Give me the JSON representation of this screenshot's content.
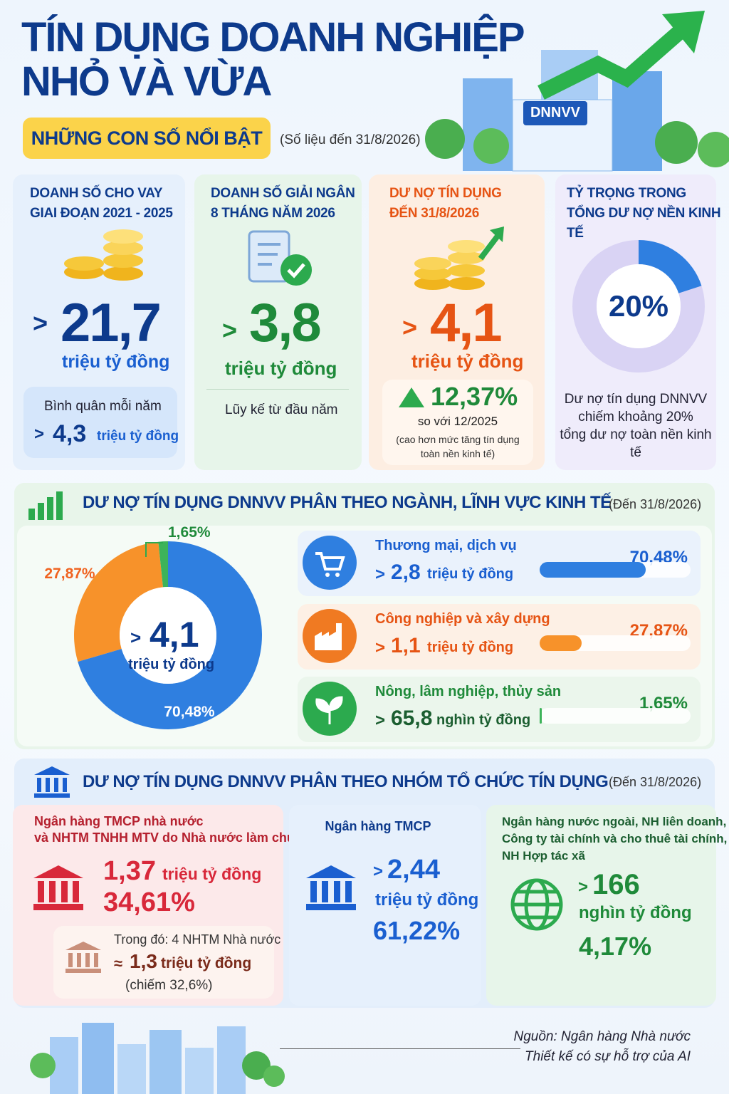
{
  "header": {
    "title_lines": [
      "TÍN DỤNG DOANH NGHIỆP",
      "NHỎ VÀ VỪA"
    ],
    "badge": "NHỮNG CON SỐ NỔI BẬT",
    "note": "(Số liệu đến 31/8/2026)",
    "building_sign": "DNNVV"
  },
  "cards": [
    {
      "title_lines": [
        "DOANH SỐ CHO VAY",
        "GIAI ĐOẠN 2021 - 2025"
      ],
      "prefix": ">",
      "value": "21,7",
      "unit": "triệu tỷ đồng",
      "note": "Bình quân mỗi năm",
      "note_value": "4,3",
      "note_unit": "triệu tỷ đồng"
    },
    {
      "title_lines": [
        "DOANH SỐ GIẢI NGÂN",
        "8 THÁNG NĂM 2026"
      ],
      "prefix": ">",
      "value": "3,8",
      "unit": "triệu tỷ đồng",
      "note": "Lũy kế từ đầu năm"
    },
    {
      "title_lines": [
        "DƯ NỢ TÍN DỤNG",
        "ĐẾN 31/8/2026"
      ],
      "prefix": ">",
      "value": "4,1",
      "unit": "triệu tỷ đồng",
      "growth": "12,37%",
      "growth_note": "so với 12/2025",
      "growth_detail_lines": [
        "(cao hơn mức tăng tín dụng",
        "toàn nền kinh tế)"
      ]
    },
    {
      "title_lines": [
        "TỶ TRỌNG TRONG",
        "TỔNG DƯ NỢ NỀN KINH TẾ"
      ],
      "share": {
        "value": 20,
        "label": "20%",
        "lim": [
          0,
          100
        ]
      },
      "note_lines": [
        "Dư nợ tín dụng DNNVV",
        "chiếm khoảng 20%",
        "tổng dư nợ toàn nền kinh tế"
      ]
    }
  ],
  "sectors": {
    "heading": "DƯ NỢ TÍN DỤNG DNNVV PHÂN THEO NGÀNH, LĨNH VỰC KINH TẾ",
    "date": "(Đến 31/8/2026)",
    "center_prefix": ">",
    "center_value": "4,1",
    "center_unit": "triệu tỷ đồng",
    "names": [
      "Thương mại, dịch vụ",
      "Công nghiệp và xây dựng",
      "Nông, lâm nghiệp, thủy sản"
    ],
    "colors": [
      "#2f7fe0",
      "#f7922a",
      "#3db35a"
    ],
    "values": [
      70.48,
      27.87,
      1.65
    ],
    "value_labels": [
      "70,48%",
      "27,87%",
      "1,65%"
    ],
    "amount_prefix": ">",
    "amounts": [
      "2,8",
      "1,1",
      "65,8"
    ],
    "amount_units": [
      "triệu tỷ đồng",
      "triệu tỷ đồng",
      "nghìn tỷ đồng"
    ]
  },
  "institutions": {
    "heading": "DƯ NỢ TÍN DỤNG DNNVV PHÂN THEO NHÓM TỔ CHỨC TÍN DỤNG",
    "date": "(Đến 31/8/2026)",
    "groups": [
      {
        "name_lines": [
          "Ngân hàng TMCP nhà nước",
          "và NHTM TNHH MTV do Nhà nước làm chủ"
        ],
        "value": "1,37",
        "unit": "triệu tỷ đồng",
        "share": "34,61%",
        "sub": {
          "label": "Trong đó: 4 NHTM Nhà nước",
          "approx": "≈",
          "value": "1,3",
          "unit": "triệu tỷ đồng",
          "share_note": "(chiếm 32,6%)"
        }
      },
      {
        "name_lines": [
          "Ngân hàng TMCP"
        ],
        "prefix": ">",
        "value": "2,44",
        "unit": "triệu tỷ đồng",
        "share": "61,22%"
      },
      {
        "name_lines": [
          "Ngân hàng nước ngoài, NH liên doanh,",
          "Công ty tài chính và cho thuê tài chính,",
          "NH Hợp tác xã"
        ],
        "prefix": ">",
        "value": "166",
        "unit": "nghìn tỷ đồng",
        "share": "4,17%"
      }
    ]
  },
  "footer": {
    "lines": [
      "Nguồn: Ngân hàng Nhà nước",
      "Thiết kế có sự hỗ trợ của AI"
    ]
  }
}
